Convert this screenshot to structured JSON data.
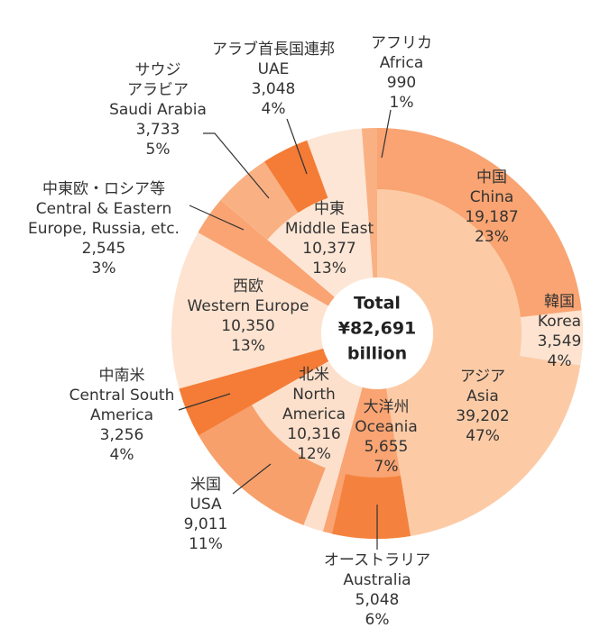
{
  "chart_data": {
    "type": "sunburst",
    "total": {
      "title": "Total",
      "value": 82691,
      "value_label": "¥82,691",
      "unit": "billion"
    },
    "regions": [
      {
        "label_lines": [
          "アジア",
          "Asia"
        ],
        "value": 39202,
        "value_label": "39,202",
        "share_label": "47%",
        "color": "#fccba6",
        "children": [
          {
            "label_lines": [
              "中国",
              "China"
            ],
            "value": 19187,
            "value_label": "19,187",
            "share_label": "23%",
            "color": "#f9a472"
          },
          {
            "label_lines": [
              "韓国",
              "Korea"
            ],
            "value": 3549,
            "value_label": "3,549",
            "share_label": "4%",
            "color": "#fde3d0"
          }
        ]
      },
      {
        "label_lines": [
          "大洋州",
          "Oceania"
        ],
        "value": 5655,
        "value_label": "5,655",
        "share_label": "7%",
        "color": "#f9a472",
        "children": [
          {
            "label_lines": [
              "オーストラリア",
              "Australia"
            ],
            "value": 5048,
            "value_label": "5,048",
            "share_label": "6%",
            "color": "#f4823e"
          }
        ]
      },
      {
        "label_lines": [
          "北米",
          "North",
          "America"
        ],
        "value": 10316,
        "value_label": "10,316",
        "share_label": "12%",
        "color": "#fde0cb",
        "children": [
          {
            "label_lines": [
              "米国",
              "USA"
            ],
            "value": 9011,
            "value_label": "9,011",
            "share_label": "11%",
            "color": "#f7a06b"
          }
        ]
      },
      {
        "label_lines": [
          "中南米",
          "Central South",
          "America"
        ],
        "value": 3256,
        "value_label": "3,256",
        "share_label": "4%",
        "color": "#f47c36",
        "children": []
      },
      {
        "label_lines": [
          "西欧",
          "Western Europe"
        ],
        "value": 10350,
        "value_label": "10,350",
        "share_label": "13%",
        "color": "#fde3d0",
        "children": []
      },
      {
        "label_lines": [
          "中東欧・ロシア等",
          "Central & Eastern",
          "Europe, Russia, etc."
        ],
        "value": 2545,
        "value_label": "2,545",
        "share_label": "3%",
        "color": "#f9a472",
        "children": []
      },
      {
        "label_lines": [
          "中東",
          "Middle East"
        ],
        "value": 10377,
        "value_label": "10,377",
        "share_label": "13%",
        "color": "#fde6d5",
        "children": [
          {
            "label_lines": [
              "サウジ",
              "アラビア",
              "Saudi Arabia"
            ],
            "value": 3733,
            "value_label": "3,733",
            "share_label": "5%",
            "color": "#f9b184"
          },
          {
            "label_lines": [
              "アラブ首長国連邦",
              "UAE"
            ],
            "value": 3048,
            "value_label": "3,048",
            "share_label": "4%",
            "color": "#f47c36"
          }
        ]
      },
      {
        "label_lines": [
          "アフリカ",
          "Africa"
        ],
        "value": 990,
        "value_label": "990",
        "share_label": "1%",
        "color": "#f9b184",
        "children": []
      }
    ]
  }
}
